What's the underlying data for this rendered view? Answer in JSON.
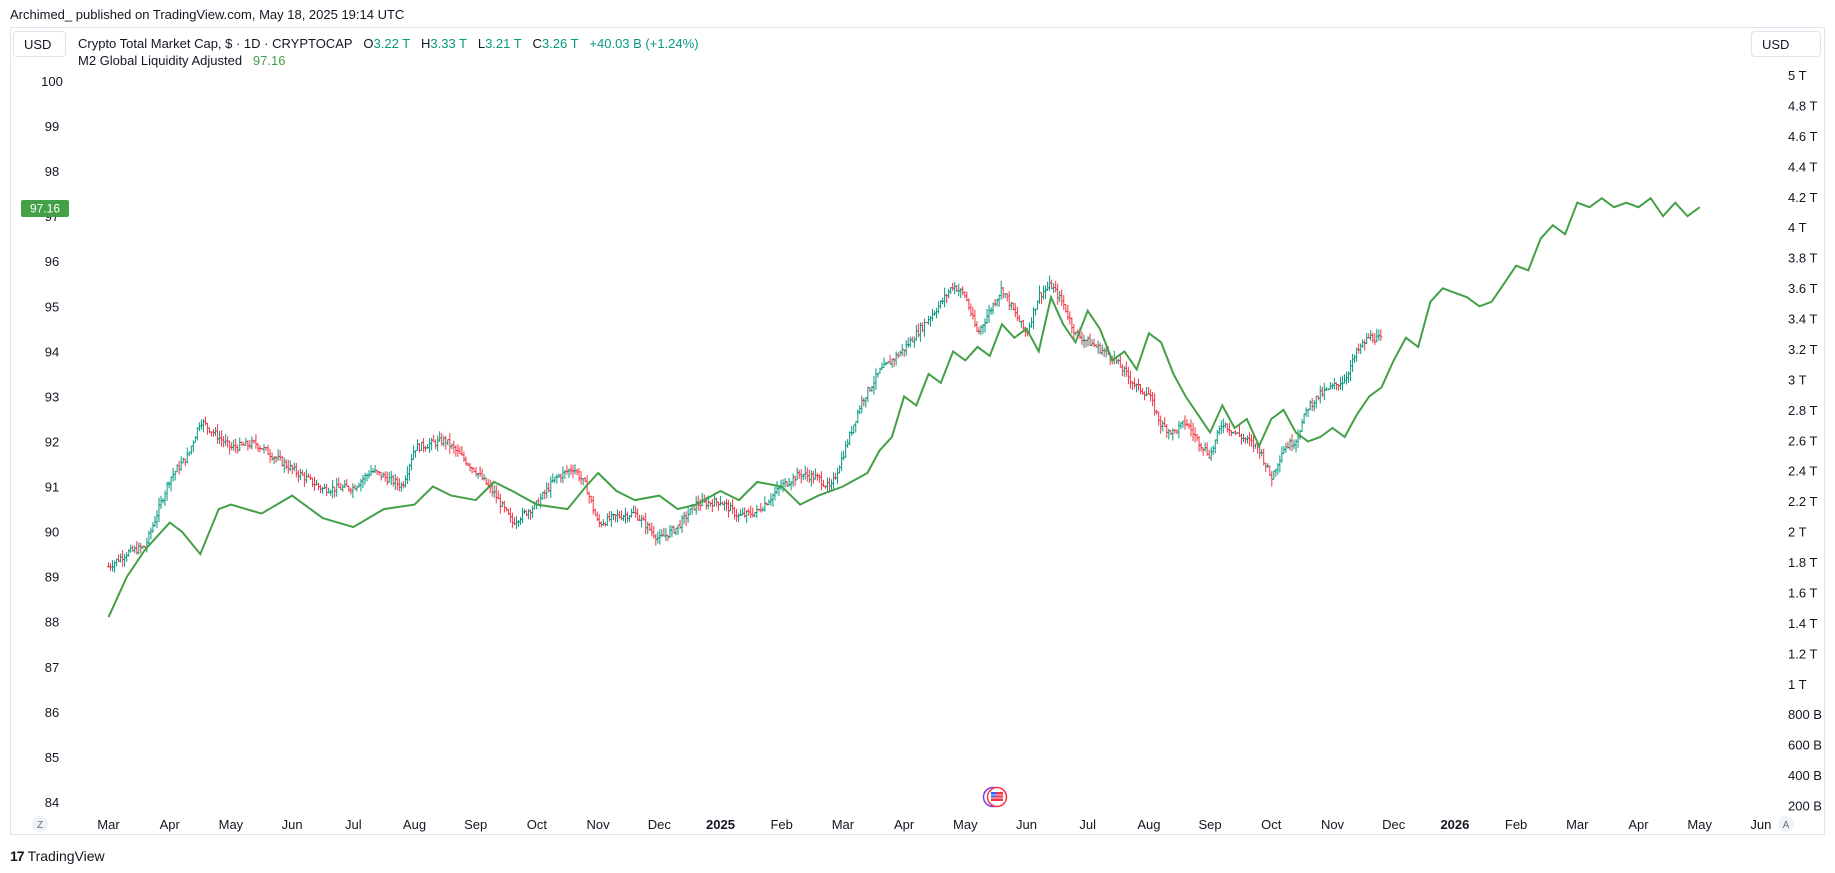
{
  "header": {
    "published": "Archimed_ published on TradingView.com, May 18, 2025 19:14 UTC"
  },
  "currency": {
    "left": "USD",
    "right": "USD"
  },
  "legend": {
    "symbol": "Crypto Total Market Cap, $ · 1D · CRYPTOCAP",
    "o_label": "O",
    "o_value": "3.22 T",
    "h_label": "H",
    "h_value": "3.33 T",
    "l_label": "L",
    "l_value": "3.21 T",
    "c_label": "C",
    "c_value": "3.26 T",
    "change": "+40.03 B (+1.24%)",
    "indicator_name": "M2 Global Liquidity Adjusted",
    "indicator_value": "97.16"
  },
  "price_badge": "97.16",
  "corner_left": "Z",
  "corner_right": "A",
  "footer": {
    "logo_text": "TradingView"
  },
  "colors": {
    "up": "#089981",
    "down": "#f23645",
    "line": "#43a047",
    "text": "#131722",
    "axis": "#131722"
  },
  "chart_data": {
    "type": "line",
    "left_axis": {
      "ticks": [
        100,
        99,
        98,
        97,
        96,
        95,
        94,
        93,
        92,
        91,
        90,
        89,
        88,
        87,
        86,
        85,
        84
      ],
      "range": [
        84,
        100.2
      ]
    },
    "right_axis": {
      "ticks": [
        "5 T",
        "4.8 T",
        "4.6 T",
        "4.4 T",
        "4.2 T",
        "4 T",
        "3.8 T",
        "3.6 T",
        "3.4 T",
        "3.2 T",
        "3 T",
        "2.8 T",
        "2.6 T",
        "2.4 T",
        "2.2 T",
        "2 T",
        "1.8 T",
        "1.6 T",
        "1.4 T",
        "1.2 T",
        "1 T",
        "800 B",
        "600 B",
        "400 B",
        "200 B"
      ],
      "range_trillions": [
        0.2,
        5.0
      ]
    },
    "x_axis": {
      "labels": [
        "Mar",
        "Apr",
        "May",
        "Jun",
        "Jul",
        "Aug",
        "Sep",
        "Oct",
        "Nov",
        "Dec",
        "2025",
        "Feb",
        "Mar",
        "Apr",
        "May",
        "Jun",
        "Jul",
        "Aug",
        "Sep",
        "Oct",
        "Nov",
        "Dec",
        "2026",
        "Feb",
        "Mar",
        "Apr",
        "May",
        "Jun"
      ],
      "bold": [
        "2025",
        "2026"
      ]
    },
    "series": [
      {
        "name": "M2 Global Liquidity Adjusted",
        "axis": "left",
        "points": [
          [
            0,
            88.1
          ],
          [
            0.3,
            89.0
          ],
          [
            0.6,
            89.6
          ],
          [
            1.0,
            90.2
          ],
          [
            1.2,
            90.0
          ],
          [
            1.5,
            89.5
          ],
          [
            1.8,
            90.5
          ],
          [
            2.0,
            90.6
          ],
          [
            2.5,
            90.4
          ],
          [
            3.0,
            90.8
          ],
          [
            3.5,
            90.3
          ],
          [
            4.0,
            90.1
          ],
          [
            4.5,
            90.5
          ],
          [
            5.0,
            90.6
          ],
          [
            5.3,
            91.0
          ],
          [
            5.6,
            90.8
          ],
          [
            6.0,
            90.7
          ],
          [
            6.3,
            91.1
          ],
          [
            6.6,
            90.9
          ],
          [
            7.0,
            90.6
          ],
          [
            7.5,
            90.5
          ],
          [
            7.8,
            91.0
          ],
          [
            8.0,
            91.3
          ],
          [
            8.3,
            90.9
          ],
          [
            8.6,
            90.7
          ],
          [
            9.0,
            90.8
          ],
          [
            9.3,
            90.5
          ],
          [
            9.6,
            90.6
          ],
          [
            10.0,
            90.9
          ],
          [
            10.3,
            90.7
          ],
          [
            10.6,
            91.1
          ],
          [
            11.0,
            91.0
          ],
          [
            11.3,
            90.6
          ],
          [
            11.6,
            90.8
          ],
          [
            12.0,
            91.0
          ],
          [
            12.4,
            91.3
          ],
          [
            12.6,
            91.8
          ],
          [
            12.8,
            92.1
          ],
          [
            13.0,
            93.0
          ],
          [
            13.2,
            92.8
          ],
          [
            13.4,
            93.5
          ],
          [
            13.6,
            93.3
          ],
          [
            13.8,
            94.0
          ],
          [
            14.0,
            93.8
          ],
          [
            14.2,
            94.1
          ],
          [
            14.4,
            93.9
          ],
          [
            14.6,
            94.6
          ],
          [
            14.8,
            94.3
          ],
          [
            15.0,
            94.5
          ],
          [
            15.2,
            94.0
          ],
          [
            15.4,
            95.2
          ],
          [
            15.6,
            94.6
          ],
          [
            15.8,
            94.2
          ],
          [
            16.0,
            94.9
          ],
          [
            16.2,
            94.5
          ],
          [
            16.4,
            93.8
          ],
          [
            16.6,
            94.0
          ],
          [
            16.8,
            93.6
          ],
          [
            17.0,
            94.4
          ],
          [
            17.2,
            94.2
          ],
          [
            17.4,
            93.5
          ],
          [
            17.6,
            93.0
          ],
          [
            17.8,
            92.6
          ],
          [
            18.0,
            92.2
          ],
          [
            18.2,
            92.8
          ],
          [
            18.4,
            92.3
          ],
          [
            18.6,
            92.5
          ],
          [
            18.8,
            91.9
          ],
          [
            19.0,
            92.5
          ],
          [
            19.2,
            92.7
          ],
          [
            19.4,
            92.2
          ],
          [
            19.6,
            92.0
          ],
          [
            19.8,
            92.1
          ],
          [
            20.0,
            92.3
          ],
          [
            20.2,
            92.1
          ],
          [
            20.4,
            92.6
          ],
          [
            20.6,
            93.0
          ],
          [
            20.8,
            93.2
          ],
          [
            21.0,
            93.8
          ],
          [
            21.2,
            94.3
          ],
          [
            21.4,
            94.1
          ],
          [
            21.6,
            95.1
          ],
          [
            21.8,
            95.4
          ],
          [
            22.0,
            95.3
          ],
          [
            22.2,
            95.2
          ],
          [
            22.4,
            95.0
          ],
          [
            22.6,
            95.1
          ],
          [
            22.8,
            95.5
          ],
          [
            23.0,
            95.9
          ],
          [
            23.2,
            95.8
          ],
          [
            23.4,
            96.5
          ],
          [
            23.6,
            96.8
          ],
          [
            23.8,
            96.6
          ],
          [
            24.0,
            97.3
          ],
          [
            24.2,
            97.2
          ],
          [
            24.4,
            97.4
          ],
          [
            24.6,
            97.2
          ],
          [
            24.8,
            97.3
          ],
          [
            25.0,
            97.2
          ],
          [
            25.2,
            97.4
          ],
          [
            25.4,
            97.0
          ],
          [
            25.6,
            97.3
          ],
          [
            25.8,
            97.0
          ],
          [
            26.0,
            97.2
          ]
        ]
      },
      {
        "name": "Crypto Total Market Cap",
        "axis": "right",
        "type": "ohlc",
        "anchors_trillions": [
          [
            0,
            1.77
          ],
          [
            0.3,
            1.86
          ],
          [
            0.6,
            1.9
          ],
          [
            1.0,
            2.35
          ],
          [
            1.3,
            2.5
          ],
          [
            1.5,
            2.73
          ],
          [
            2.0,
            2.55
          ],
          [
            2.4,
            2.58
          ],
          [
            3.0,
            2.41
          ],
          [
            3.5,
            2.28
          ],
          [
            4.0,
            2.29
          ],
          [
            4.3,
            2.4
          ],
          [
            4.8,
            2.3
          ],
          [
            5.0,
            2.55
          ],
          [
            5.5,
            2.6
          ],
          [
            6.0,
            2.4
          ],
          [
            6.3,
            2.25
          ],
          [
            6.6,
            2.06
          ],
          [
            7.0,
            2.18
          ],
          [
            7.3,
            2.35
          ],
          [
            7.6,
            2.42
          ],
          [
            7.8,
            2.3
          ],
          [
            8.0,
            2.05
          ],
          [
            8.3,
            2.1
          ],
          [
            8.6,
            2.12
          ],
          [
            9.0,
            1.95
          ],
          [
            9.3,
            2.03
          ],
          [
            9.6,
            2.18
          ],
          [
            10.0,
            2.2
          ],
          [
            10.3,
            2.1
          ],
          [
            10.6,
            2.13
          ],
          [
            11.0,
            2.3
          ],
          [
            11.3,
            2.38
          ],
          [
            11.6,
            2.35
          ],
          [
            11.8,
            2.28
          ],
          [
            12.0,
            2.5
          ],
          [
            12.3,
            2.85
          ],
          [
            12.6,
            3.05
          ],
          [
            13.0,
            3.2
          ],
          [
            13.3,
            3.35
          ],
          [
            13.6,
            3.5
          ],
          [
            13.8,
            3.62
          ],
          [
            14.0,
            3.55
          ],
          [
            14.2,
            3.3
          ],
          [
            14.4,
            3.45
          ],
          [
            14.6,
            3.6
          ],
          [
            14.8,
            3.44
          ],
          [
            15.0,
            3.3
          ],
          [
            15.2,
            3.55
          ],
          [
            15.4,
            3.62
          ],
          [
            15.6,
            3.5
          ],
          [
            15.8,
            3.3
          ],
          [
            16.0,
            3.25
          ],
          [
            16.2,
            3.2
          ],
          [
            16.4,
            3.15
          ],
          [
            16.6,
            3.05
          ],
          [
            16.8,
            2.95
          ],
          [
            17.0,
            2.9
          ],
          [
            17.2,
            2.7
          ],
          [
            17.4,
            2.65
          ],
          [
            17.6,
            2.72
          ],
          [
            17.8,
            2.6
          ],
          [
            18.0,
            2.5
          ],
          [
            18.2,
            2.72
          ],
          [
            18.4,
            2.65
          ],
          [
            18.6,
            2.6
          ],
          [
            18.8,
            2.55
          ],
          [
            19.0,
            2.35
          ],
          [
            19.2,
            2.55
          ],
          [
            19.4,
            2.6
          ],
          [
            19.6,
            2.82
          ],
          [
            19.8,
            2.9
          ],
          [
            20.0,
            2.95
          ],
          [
            20.2,
            3.0
          ],
          [
            20.4,
            3.18
          ],
          [
            20.6,
            3.28
          ],
          [
            20.8,
            3.26
          ]
        ]
      }
    ]
  }
}
